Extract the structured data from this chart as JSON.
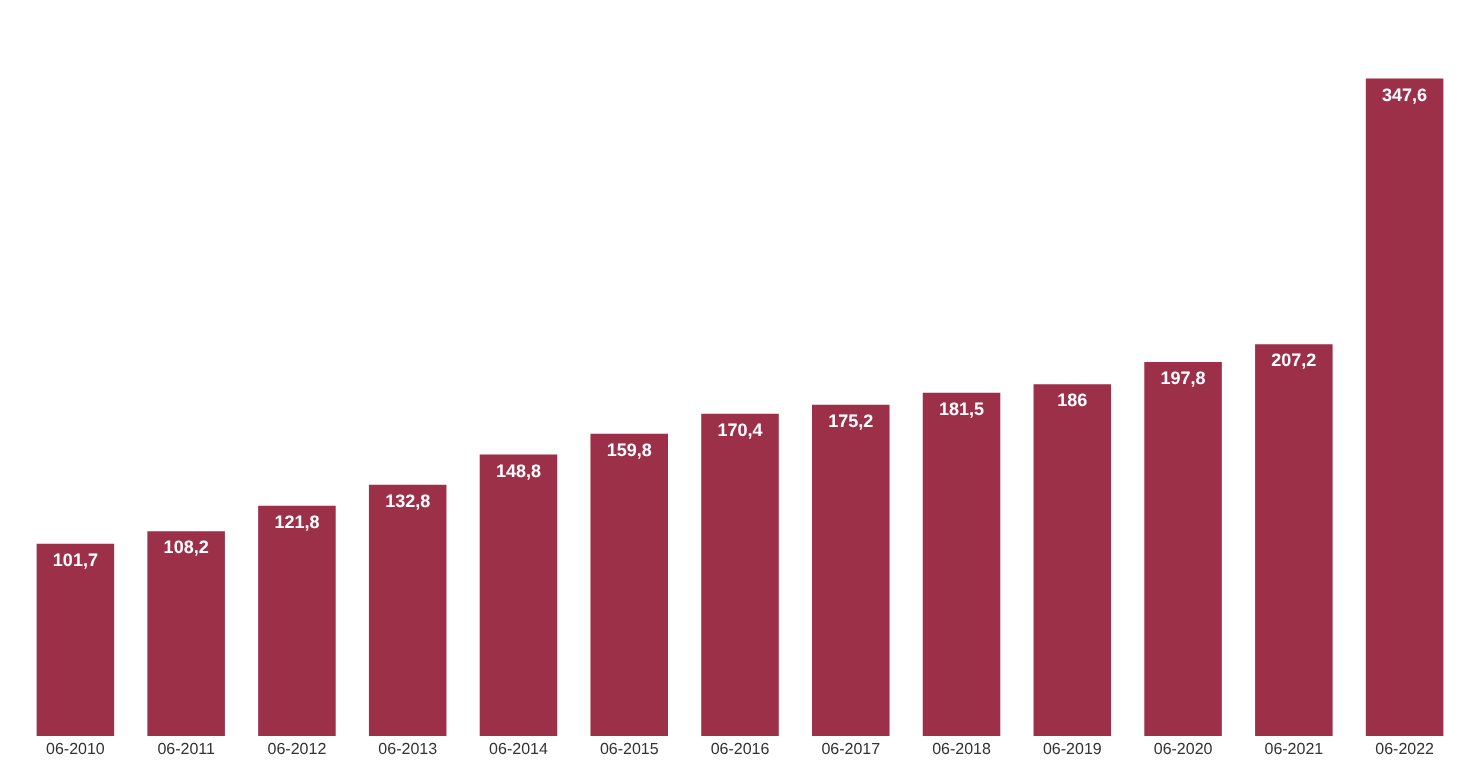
{
  "chart_data": {
    "type": "bar",
    "categories": [
      "06-2010",
      "06-2011",
      "06-2012",
      "06-2013",
      "06-2014",
      "06-2015",
      "06-2016",
      "06-2017",
      "06-2018",
      "06-2019",
      "06-2020",
      "06-2021",
      "06-2022"
    ],
    "values": [
      101.7,
      108.2,
      121.8,
      132.8,
      148.8,
      159.8,
      170.4,
      175.2,
      181.5,
      186,
      197.8,
      207.2,
      347.6
    ],
    "value_labels": [
      "101,7",
      "108,2",
      "121,8",
      "132,8",
      "148,8",
      "159,8",
      "170,4",
      "175,2",
      "181,5",
      "186",
      "197,8",
      "207,2",
      "347,6"
    ],
    "color": "#9b3048",
    "grid": false,
    "legend": false
  }
}
